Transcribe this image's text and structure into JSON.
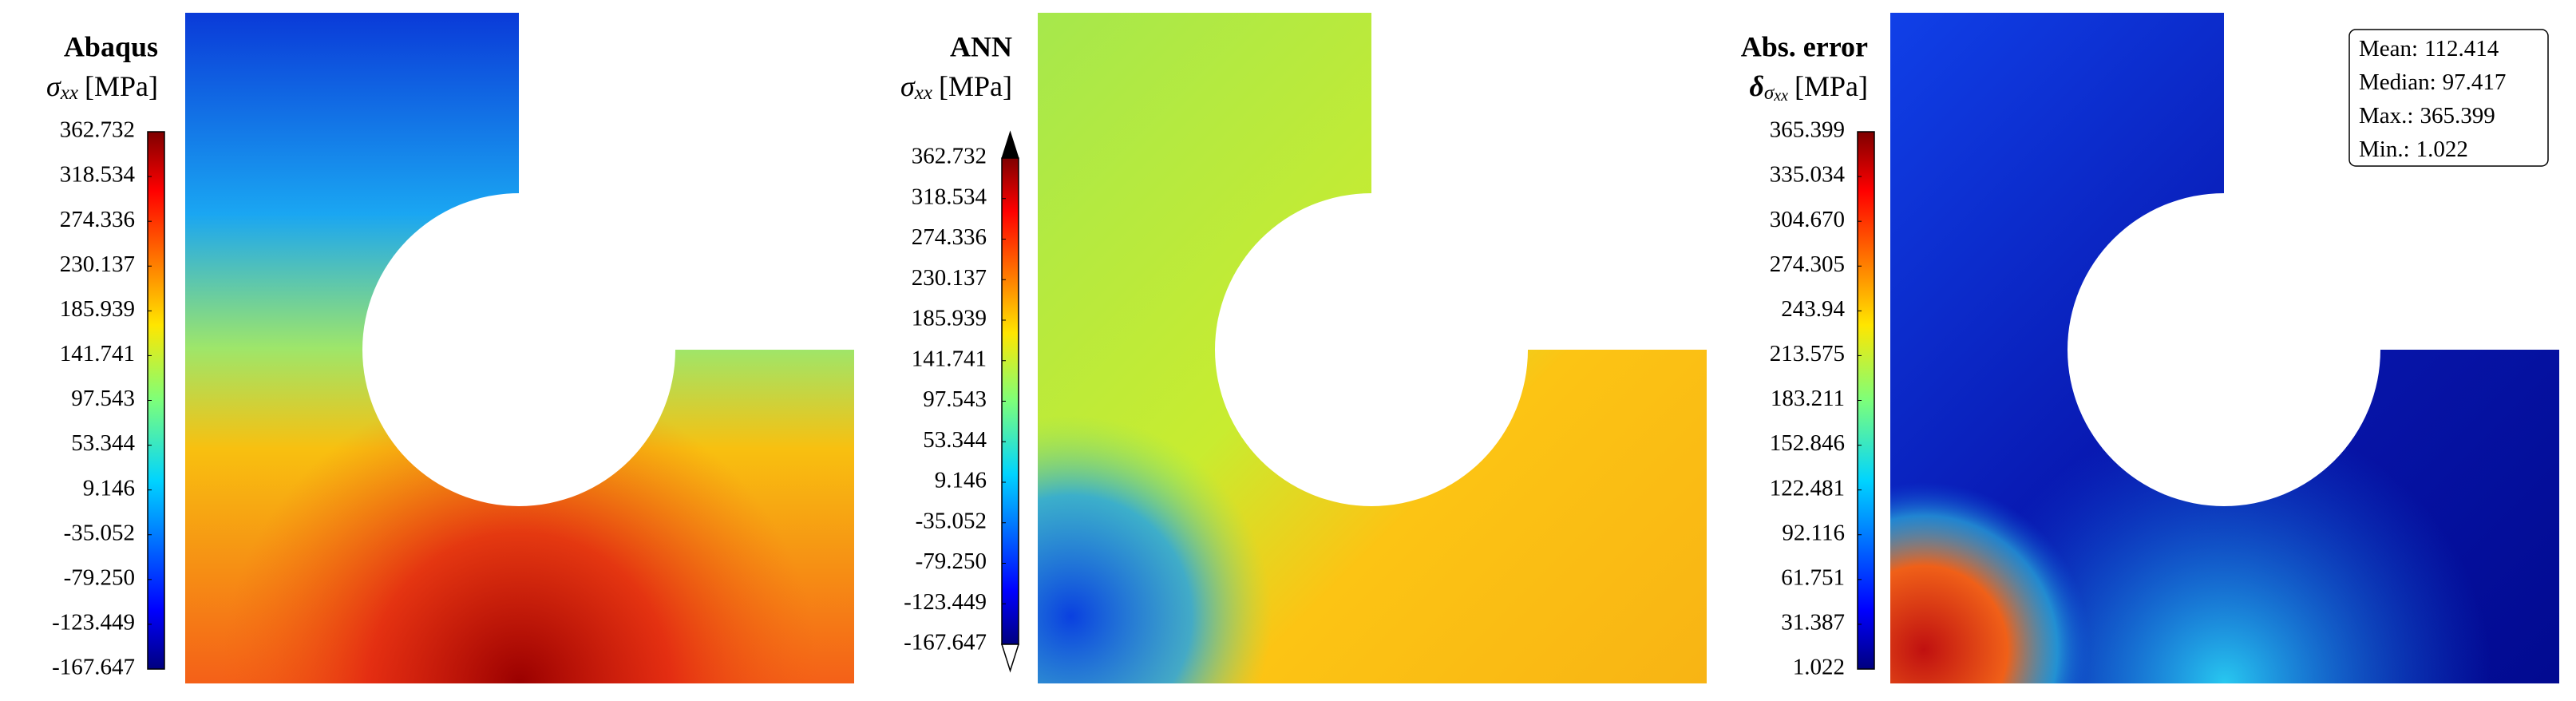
{
  "chart_data": [
    {
      "type": "contour",
      "title": "Abaqus",
      "quantity": {
        "symbol": "σ",
        "subscript": "xx",
        "unit": "[MPa]"
      },
      "colormap": "jet",
      "extend": "neither",
      "ylim": [
        -167.647,
        362.732
      ],
      "yticks": [
        362.732,
        318.534,
        274.336,
        230.137,
        185.939,
        141.741,
        97.543,
        53.344,
        9.146,
        -35.052,
        {
          "value": -79.25,
          "label": "-79.250"
        },
        -123.449,
        -167.647
      ]
    },
    {
      "type": "contour",
      "title": "ANN",
      "quantity": {
        "symbol": "σ",
        "subscript": "xx",
        "unit": "[MPa]"
      },
      "colormap": "jet",
      "extend": "both",
      "ylim": [
        -167.647,
        362.732
      ],
      "yticks": [
        362.732,
        318.534,
        274.336,
        230.137,
        185.939,
        141.741,
        97.543,
        53.344,
        9.146,
        -35.052,
        {
          "value": -79.25,
          "label": "-79.250"
        },
        -123.449,
        -167.647
      ]
    },
    {
      "type": "contour",
      "title": "Abs. error",
      "quantity": {
        "symbol": "δ",
        "subscript": "σ",
        "subsubscript": "xx",
        "unit": "[MPa]"
      },
      "colormap": "jet",
      "extend": "neither",
      "ylim": [
        1.022,
        365.399
      ],
      "yticks": [
        365.399,
        335.034,
        {
          "value": 304.67,
          "label": "304.670"
        },
        274.305,
        243.94,
        213.575,
        183.211,
        152.846,
        122.481,
        92.116,
        61.751,
        31.387,
        1.022
      ],
      "stats": [
        {
          "label": "Mean:",
          "value": 112.414
        },
        {
          "label": "Median:",
          "value": 97.417
        },
        {
          "label": "Max.:",
          "value": 365.399
        },
        {
          "label": "Min.:",
          "value": 1.022
        }
      ]
    }
  ]
}
